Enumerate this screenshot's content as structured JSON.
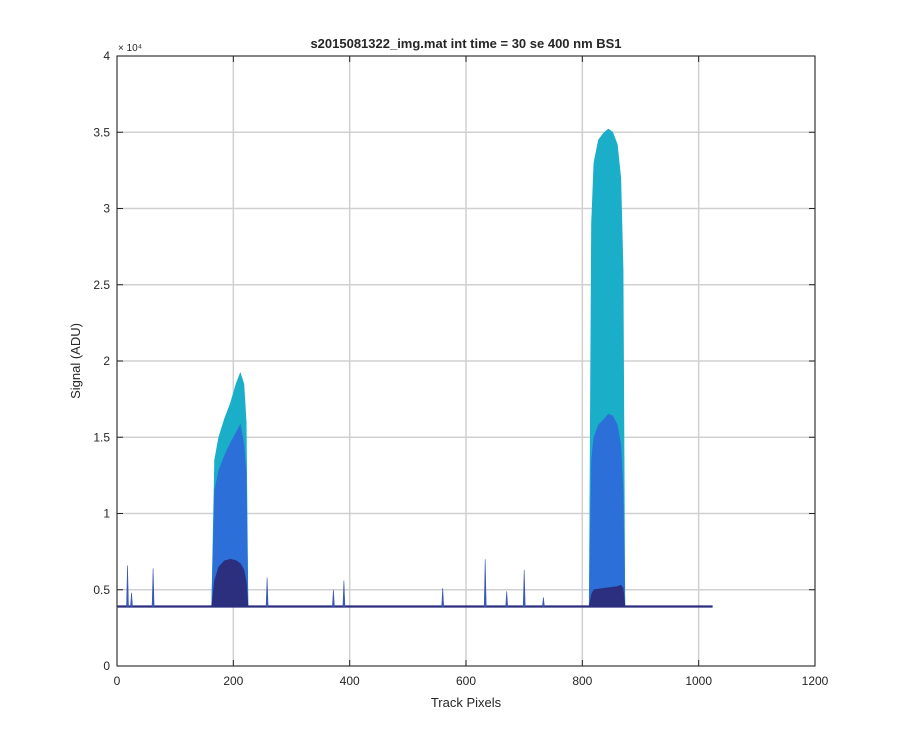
{
  "chart_data": {
    "type": "area",
    "title": "s2015081322_img.mat int time = 30 se  400 nm BS1",
    "xlabel": "Track Pixels",
    "ylabel": "Signal (ADU)",
    "xlim": [
      0,
      1200
    ],
    "ylim": [
      0,
      40000
    ],
    "y_exponent_label": "× 10⁴",
    "x_ticks": [
      0,
      200,
      400,
      600,
      800,
      1000,
      1200
    ],
    "x_tick_labels": [
      "0",
      "200",
      "400",
      "600",
      "800",
      "1000",
      "1200"
    ],
    "y_ticks": [
      0,
      5000,
      10000,
      15000,
      20000,
      25000,
      30000,
      35000,
      40000
    ],
    "y_tick_labels": [
      "0",
      "0.5",
      "1",
      "1.5",
      "2",
      "2.5",
      "3",
      "3.5",
      "4"
    ],
    "grid": true,
    "legend": "none",
    "baseline": 3900,
    "track_range": [
      1,
      1024
    ],
    "series": [
      {
        "color": "#1aaec9",
        "peaks": [
          {
            "x": [
              163,
              168,
              175,
              185,
              195,
              205,
              212,
              218,
              222,
              225
            ],
            "y": [
              3900,
              13500,
              15000,
              16200,
              17200,
              18500,
              19200,
              18500,
              16000,
              3900
            ]
          },
          {
            "x": [
              812,
              816,
              820,
              828,
              838,
              845,
              852,
              860,
              866,
              870,
              873
            ],
            "y": [
              3900,
              29000,
              33000,
              34500,
              35000,
              35200,
              35000,
              34200,
              32000,
              26000,
              3900
            ]
          }
        ]
      },
      {
        "color": "#2d6fd8",
        "peaks": [
          {
            "x": [
              163,
              168,
              175,
              185,
              195,
              205,
              212,
              218,
              222,
              225
            ],
            "y": [
              3900,
              11500,
              12800,
              13800,
              14600,
              15300,
              15800,
              14500,
              12500,
              3900
            ]
          },
          {
            "x": [
              812,
              816,
              820,
              828,
              838,
              845,
              852,
              860,
              866,
              870,
              873
            ],
            "y": [
              3900,
              13500,
              15000,
              15800,
              16200,
              16500,
              16400,
              15800,
              14500,
              11500,
              3900
            ]
          }
        ]
      },
      {
        "color": "#2b2f7e",
        "peaks": [
          {
            "x": [
              163,
              168,
              175,
              185,
              195,
              205,
              212,
              218,
              222,
              225
            ],
            "y": [
              3900,
              5600,
              6500,
              6900,
              7000,
              6900,
              6700,
              6300,
              5500,
              3900
            ]
          },
          {
            "x": [
              812,
              816,
              820,
              840,
              860,
              866,
              870,
              873
            ],
            "y": [
              3900,
              4700,
              5000,
              5100,
              5200,
              5300,
              5100,
              3900
            ]
          }
        ]
      }
    ],
    "spikes": [
      {
        "x": 18,
        "y": 6600
      },
      {
        "x": 25,
        "y": 4800
      },
      {
        "x": 62,
        "y": 6400
      },
      {
        "x": 258,
        "y": 5800
      },
      {
        "x": 372,
        "y": 5000
      },
      {
        "x": 390,
        "y": 5600
      },
      {
        "x": 560,
        "y": 5100
      },
      {
        "x": 633,
        "y": 7000
      },
      {
        "x": 670,
        "y": 4900
      },
      {
        "x": 700,
        "y": 6300
      },
      {
        "x": 733,
        "y": 4500
      }
    ]
  },
  "colors": {
    "grid": "#d0d0d0",
    "axis": "#262626",
    "baseline": "#2b2f7e"
  }
}
